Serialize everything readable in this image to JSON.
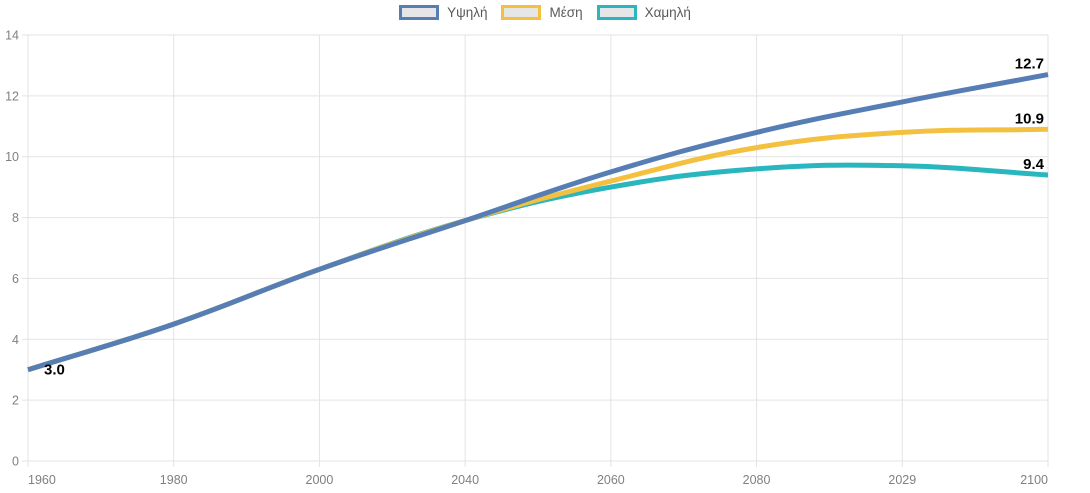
{
  "chart_data": {
    "type": "line",
    "categories": [
      "1960",
      "1980",
      "2000",
      "2040",
      "2060",
      "2080",
      "2029",
      "2100"
    ],
    "series": [
      {
        "name": "Υψηλή",
        "color": "#567eb5",
        "values": [
          3.0,
          4.5,
          6.3,
          7.9,
          9.5,
          10.8,
          11.8,
          12.7
        ]
      },
      {
        "name": "Μέση",
        "color": "#f3c13f",
        "values": [
          3.0,
          4.5,
          6.3,
          7.9,
          9.2,
          10.3,
          10.8,
          10.9
        ]
      },
      {
        "name": "Χαμηλή",
        "color": "#29b6bf",
        "values": [
          3.0,
          4.5,
          6.3,
          7.9,
          9.0,
          9.6,
          9.7,
          9.4
        ]
      }
    ],
    "point_labels": [
      {
        "series": 0,
        "position": "start",
        "text": "3.0"
      },
      {
        "series": 0,
        "position": "end",
        "text": "12.7"
      },
      {
        "series": 1,
        "position": "end",
        "text": "10.9"
      },
      {
        "series": 2,
        "position": "end",
        "text": "9.4"
      }
    ],
    "xlabel": "",
    "ylabel": "",
    "title": "",
    "ylim": [
      0,
      14
    ],
    "y_tick_step": 2,
    "y_tick_labels": [
      "0",
      "2",
      "4",
      "6",
      "8",
      "10",
      "12",
      "14"
    ],
    "grid": true,
    "legend_position": "top"
  },
  "colors": {
    "background": "#ffffff",
    "grid": "#e3e3e3",
    "tick_text": "#808080",
    "legend_text": "#595959",
    "legend_fill": "#e6e6e6",
    "data_label": "#000000"
  }
}
